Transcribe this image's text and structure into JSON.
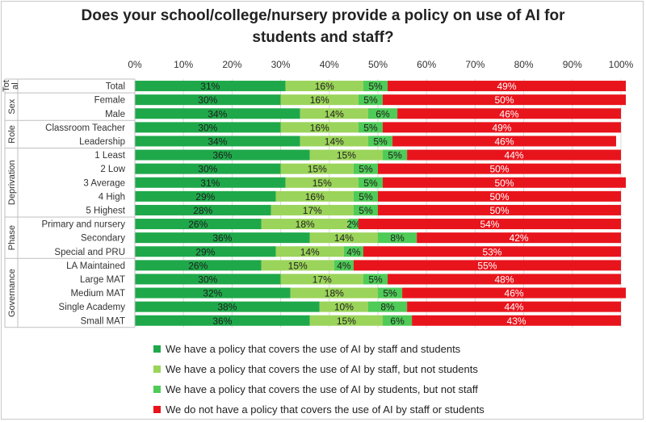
{
  "title_line1": "Does your school/college/nursery provide a policy on use of AI for",
  "title_line2": "students and staff?",
  "chart_data": {
    "type": "bar",
    "orientation": "horizontal",
    "stacked": true,
    "title": "Does your school/college/nursery provide a policy on use of AI for students and staff?",
    "xlim": [
      0,
      100
    ],
    "x_ticks": [
      "0%",
      "10%",
      "20%",
      "30%",
      "40%",
      "50%",
      "60%",
      "70%",
      "80%",
      "90%",
      "100%"
    ],
    "groups": [
      {
        "name": "Tot al",
        "rows": [
          0,
          0
        ]
      },
      {
        "name": "Sex",
        "rows": [
          1,
          2
        ]
      },
      {
        "name": "Role",
        "rows": [
          3,
          4
        ]
      },
      {
        "name": "Deprivation",
        "rows": [
          5,
          9
        ]
      },
      {
        "name": "Phase",
        "rows": [
          10,
          12
        ]
      },
      {
        "name": "Governance",
        "rows": [
          13,
          17
        ]
      }
    ],
    "categories": [
      "Total",
      "Female",
      "Male",
      "Classroom Teacher",
      "Leadership",
      "1 Least",
      "2 Low",
      "3 Average",
      "4 High",
      "5 Highest",
      "Primary and nursery",
      "Secondary",
      "Special and PRU",
      "LA Maintained",
      "Large MAT",
      "Medium MAT",
      "Single Academy",
      "Small MAT"
    ],
    "series": [
      {
        "name": "We have a policy that covers the use of AI by staff and students",
        "color": "#1fa84a",
        "values": [
          31,
          30,
          34,
          30,
          34,
          36,
          30,
          31,
          29,
          28,
          26,
          36,
          29,
          26,
          30,
          32,
          38,
          36
        ]
      },
      {
        "name": "We have a policy that covers the use of AI by staff, but not students",
        "color": "#9bd45a",
        "values": [
          16,
          16,
          14,
          16,
          14,
          15,
          15,
          15,
          16,
          17,
          18,
          14,
          14,
          15,
          17,
          18,
          10,
          15
        ]
      },
      {
        "name": "We have a policy that covers the use of AI by students, but not staff",
        "color": "#4fcb57",
        "values": [
          5,
          5,
          6,
          5,
          5,
          5,
          5,
          5,
          5,
          5,
          2,
          8,
          4,
          4,
          5,
          5,
          8,
          6
        ]
      },
      {
        "name": "We do not have a policy that covers the use of AI by staff or students",
        "color": "#e8141c",
        "values": [
          49,
          50,
          46,
          49,
          46,
          44,
          50,
          50,
          50,
          50,
          54,
          42,
          53,
          55,
          48,
          46,
          44,
          43
        ]
      }
    ],
    "data_label_suffix": "%",
    "legend_position": "bottom"
  }
}
